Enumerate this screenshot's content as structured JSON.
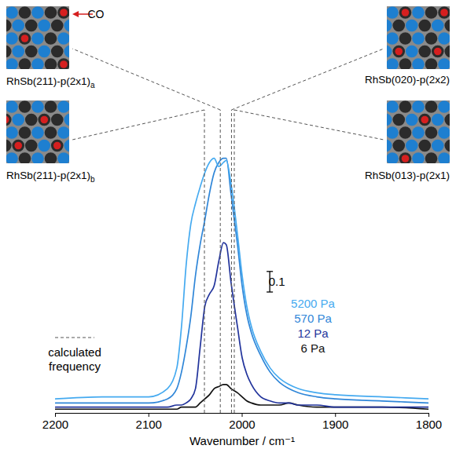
{
  "chart_data": {
    "type": "line",
    "x_label": "Wavenumber / cm⁻¹",
    "x": [
      2200,
      2150,
      2100,
      2080,
      2070,
      2065,
      2060,
      2055,
      2050,
      2045,
      2040,
      2035,
      2030,
      2025,
      2020,
      2017,
      2012,
      2005,
      2000,
      1995,
      1990,
      1980,
      1970,
      1960,
      1950,
      1940,
      1920,
      1900,
      1850,
      1800
    ],
    "series": [
      {
        "name": "5200 Pa",
        "color": "#45aaf0",
        "values": [
          0.05,
          0.06,
          0.06,
          0.1,
          0.2,
          0.4,
          0.7,
          0.9,
          1.0,
          1.08,
          1.15,
          1.2,
          1.22,
          1.18,
          1.2,
          1.21,
          1.1,
          0.85,
          0.65,
          0.5,
          0.4,
          0.28,
          0.2,
          0.15,
          0.12,
          0.1,
          0.08,
          0.07,
          0.06,
          0.05
        ]
      },
      {
        "name": "570 Pa",
        "color": "#2f86d8",
        "values": [
          0.03,
          0.03,
          0.03,
          0.05,
          0.1,
          0.18,
          0.3,
          0.45,
          0.65,
          0.8,
          0.92,
          1.05,
          1.15,
          1.2,
          1.22,
          1.22,
          1.05,
          0.8,
          0.6,
          0.46,
          0.37,
          0.26,
          0.18,
          0.13,
          0.1,
          0.08,
          0.06,
          0.05,
          0.04,
          0.03
        ]
      },
      {
        "name": "12 Pa",
        "color": "#22349c",
        "values": [
          0.01,
          0.01,
          0.01,
          0.01,
          0.02,
          0.02,
          0.03,
          0.05,
          0.1,
          0.3,
          0.5,
          0.56,
          0.6,
          0.72,
          0.81,
          0.8,
          0.62,
          0.4,
          0.25,
          0.17,
          0.12,
          0.06,
          0.04,
          0.03,
          0.03,
          0.02,
          0.02,
          0.01,
          0.01,
          0.01
        ]
      },
      {
        "name": "6 Pa",
        "color": "#111111",
        "values": [
          0,
          0,
          0,
          0,
          0,
          0.01,
          0.01,
          0.01,
          0.01,
          0.03,
          0.05,
          0.07,
          0.1,
          0.11,
          0.12,
          0.12,
          0.1,
          0.08,
          0.06,
          0.04,
          0.03,
          0.02,
          0.02,
          0.02,
          0.03,
          0.02,
          0.01,
          0.01,
          0.01,
          0
        ]
      }
    ],
    "xlim": [
      2200,
      1800
    ],
    "xticks": [
      2200,
      2100,
      2000,
      1900,
      1800
    ],
    "ylim": [
      -0.02,
      1.95
    ],
    "tick_labels": "x",
    "legend": "right",
    "scale_bar": 0.1,
    "calculated_frequency_label": "calculated frequency",
    "structures": [
      {
        "label": "RhSb(211)-p(2x1)",
        "sub": "a",
        "frequency": 2023
      },
      {
        "label": "RhSb(211)-p(2x1)",
        "sub": "b",
        "frequency": 2040
      },
      {
        "label": "RhSb(020)-p(2x2)",
        "sub": null,
        "frequency": 2011
      },
      {
        "label": "RhSb(013)-p(2x1)",
        "sub": null,
        "frequency": 2008
      }
    ],
    "annotations": [
      "CO"
    ]
  }
}
